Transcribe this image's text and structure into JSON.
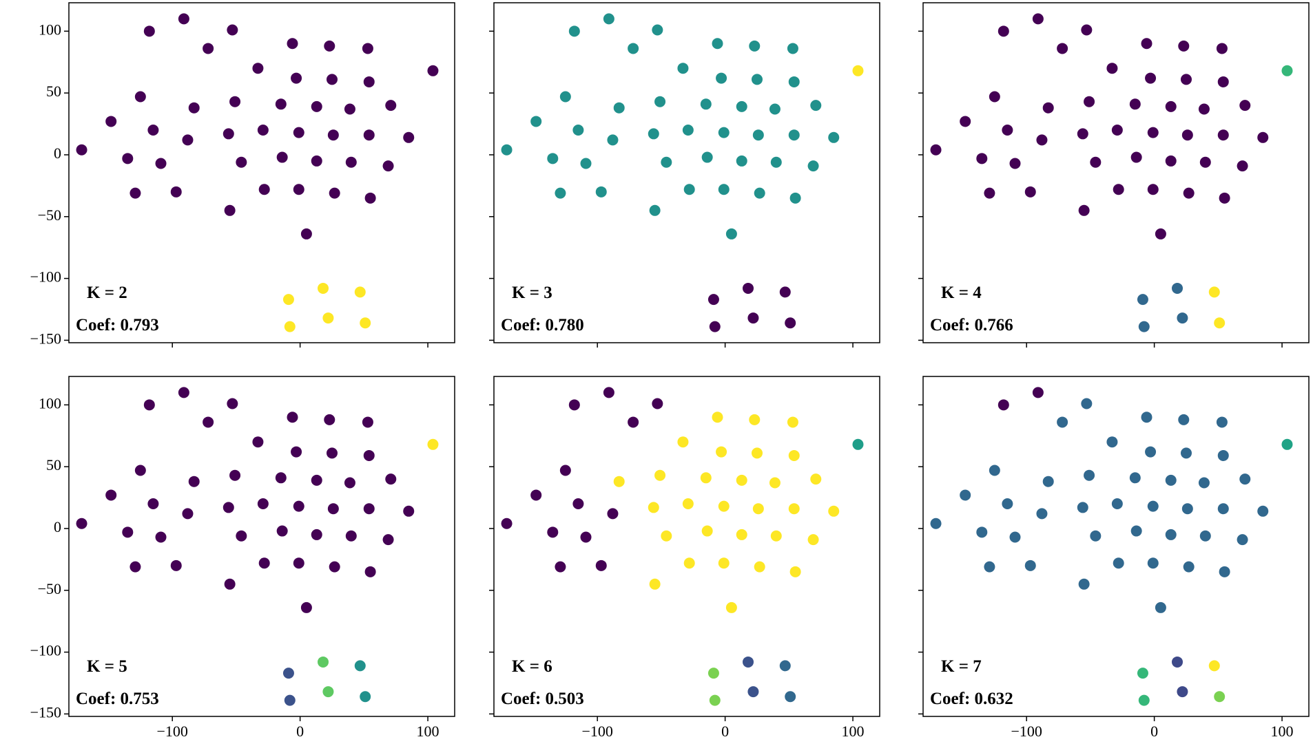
{
  "chart_data": [
    {
      "type": "scatter",
      "annotations": [
        "K = 2",
        "Coef: 0.793"
      ],
      "x": [
        -171,
        -148,
        -135,
        -129,
        -125,
        -118,
        -115,
        -109,
        -97,
        -91,
        -88,
        -83,
        -72,
        -56,
        -55,
        -53,
        -51,
        -46,
        -33,
        -29,
        -28,
        -15,
        -14,
        -6,
        -3,
        -1,
        -1,
        5,
        13,
        13,
        23,
        25,
        26,
        27,
        39,
        40,
        53,
        54,
        54,
        55,
        71,
        69,
        85,
        104,
        -9,
        -8,
        18,
        22,
        47,
        51
      ],
      "y": [
        4,
        27,
        -3,
        -31,
        47,
        100,
        20,
        -7,
        -30,
        110,
        12,
        38,
        86,
        17,
        -45,
        101,
        43,
        -6,
        70,
        20,
        -28,
        41,
        -2,
        90,
        62,
        18,
        -28,
        -64,
        39,
        -5,
        88,
        61,
        16,
        -31,
        37,
        -6,
        86,
        59,
        16,
        -35,
        40,
        -9,
        14,
        68,
        -117,
        -139,
        -108,
        -132,
        -111,
        -136
      ],
      "colors": [
        "#440154",
        "#440154",
        "#440154",
        "#440154",
        "#440154",
        "#440154",
        "#440154",
        "#440154",
        "#440154",
        "#440154",
        "#440154",
        "#440154",
        "#440154",
        "#440154",
        "#440154",
        "#440154",
        "#440154",
        "#440154",
        "#440154",
        "#440154",
        "#440154",
        "#440154",
        "#440154",
        "#440154",
        "#440154",
        "#440154",
        "#440154",
        "#440154",
        "#440154",
        "#440154",
        "#440154",
        "#440154",
        "#440154",
        "#440154",
        "#440154",
        "#440154",
        "#440154",
        "#440154",
        "#440154",
        "#440154",
        "#440154",
        "#440154",
        "#440154",
        "#440154",
        "#fde725",
        "#fde725",
        "#fde725",
        "#fde725",
        "#fde725",
        "#fde725"
      ],
      "xlim": [
        -181,
        121
      ],
      "ylim": [
        -152,
        123
      ],
      "xticks": [
        {
          "value": -100,
          "label": "−100"
        },
        0,
        100
      ],
      "yticks": [
        {
          "value": -150,
          "label": "−150"
        },
        {
          "value": -100,
          "label": "−100"
        },
        {
          "value": -50,
          "label": "−50"
        },
        0,
        50,
        100
      ]
    },
    {
      "type": "scatter",
      "annotations": [
        "K = 3",
        "Coef: 0.780"
      ],
      "x": [
        -171,
        -148,
        -135,
        -129,
        -125,
        -118,
        -115,
        -109,
        -97,
        -91,
        -88,
        -83,
        -72,
        -56,
        -55,
        -53,
        -51,
        -46,
        -33,
        -29,
        -28,
        -15,
        -14,
        -6,
        -3,
        -1,
        -1,
        5,
        13,
        13,
        23,
        25,
        26,
        27,
        39,
        40,
        53,
        54,
        54,
        55,
        71,
        69,
        85,
        104,
        -9,
        -8,
        18,
        22,
        47,
        51
      ],
      "y": [
        4,
        27,
        -3,
        -31,
        47,
        100,
        20,
        -7,
        -30,
        110,
        12,
        38,
        86,
        17,
        -45,
        101,
        43,
        -6,
        70,
        20,
        -28,
        41,
        -2,
        90,
        62,
        18,
        -28,
        -64,
        39,
        -5,
        88,
        61,
        16,
        -31,
        37,
        -6,
        86,
        59,
        16,
        -35,
        40,
        -9,
        14,
        68,
        -117,
        -139,
        -108,
        -132,
        -111,
        -136
      ],
      "colors": [
        "#21918c",
        "#21918c",
        "#21918c",
        "#21918c",
        "#21918c",
        "#21918c",
        "#21918c",
        "#21918c",
        "#21918c",
        "#21918c",
        "#21918c",
        "#21918c",
        "#21918c",
        "#21918c",
        "#21918c",
        "#21918c",
        "#21918c",
        "#21918c",
        "#21918c",
        "#21918c",
        "#21918c",
        "#21918c",
        "#21918c",
        "#21918c",
        "#21918c",
        "#21918c",
        "#21918c",
        "#21918c",
        "#21918c",
        "#21918c",
        "#21918c",
        "#21918c",
        "#21918c",
        "#21918c",
        "#21918c",
        "#21918c",
        "#21918c",
        "#21918c",
        "#21918c",
        "#21918c",
        "#21918c",
        "#21918c",
        "#21918c",
        "#fde725",
        "#440154",
        "#440154",
        "#440154",
        "#440154",
        "#440154",
        "#440154"
      ],
      "xlim": [
        -181,
        121
      ],
      "ylim": [
        -152,
        123
      ],
      "xticks": [
        {
          "value": -100,
          "label": "−100"
        },
        0,
        100
      ],
      "yticks": [
        {
          "value": -150,
          "label": "−150"
        },
        {
          "value": -100,
          "label": "−100"
        },
        {
          "value": -50,
          "label": "−50"
        },
        0,
        50,
        100
      ]
    },
    {
      "type": "scatter",
      "annotations": [
        "K = 4",
        "Coef: 0.766"
      ],
      "x": [
        -171,
        -148,
        -135,
        -129,
        -125,
        -118,
        -115,
        -109,
        -97,
        -91,
        -88,
        -83,
        -72,
        -56,
        -55,
        -53,
        -51,
        -46,
        -33,
        -29,
        -28,
        -15,
        -14,
        -6,
        -3,
        -1,
        -1,
        5,
        13,
        13,
        23,
        25,
        26,
        27,
        39,
        40,
        53,
        54,
        54,
        55,
        71,
        69,
        85,
        104,
        -9,
        -8,
        18,
        22,
        47,
        51
      ],
      "y": [
        4,
        27,
        -3,
        -31,
        47,
        100,
        20,
        -7,
        -30,
        110,
        12,
        38,
        86,
        17,
        -45,
        101,
        43,
        -6,
        70,
        20,
        -28,
        41,
        -2,
        90,
        62,
        18,
        -28,
        -64,
        39,
        -5,
        88,
        61,
        16,
        -31,
        37,
        -6,
        86,
        59,
        16,
        -35,
        40,
        -9,
        14,
        68,
        -117,
        -139,
        -108,
        -132,
        -111,
        -136
      ],
      "colors": [
        "#440154",
        "#440154",
        "#440154",
        "#440154",
        "#440154",
        "#440154",
        "#440154",
        "#440154",
        "#440154",
        "#440154",
        "#440154",
        "#440154",
        "#440154",
        "#440154",
        "#440154",
        "#440154",
        "#440154",
        "#440154",
        "#440154",
        "#440154",
        "#440154",
        "#440154",
        "#440154",
        "#440154",
        "#440154",
        "#440154",
        "#440154",
        "#440154",
        "#440154",
        "#440154",
        "#440154",
        "#440154",
        "#440154",
        "#440154",
        "#440154",
        "#440154",
        "#440154",
        "#440154",
        "#440154",
        "#440154",
        "#440154",
        "#440154",
        "#440154",
        "#35b779",
        "#31688e",
        "#31688e",
        "#31688e",
        "#31688e",
        "#fde725",
        "#fde725"
      ],
      "xlim": [
        -181,
        121
      ],
      "ylim": [
        -152,
        123
      ],
      "xticks": [
        {
          "value": -100,
          "label": "−100"
        },
        0,
        100
      ],
      "yticks": [
        {
          "value": -150,
          "label": "−150"
        },
        {
          "value": -100,
          "label": "−100"
        },
        {
          "value": -50,
          "label": "−50"
        },
        0,
        50,
        100
      ]
    },
    {
      "type": "scatter",
      "annotations": [
        "K = 5",
        "Coef: 0.753"
      ],
      "x": [
        -171,
        -148,
        -135,
        -129,
        -125,
        -118,
        -115,
        -109,
        -97,
        -91,
        -88,
        -83,
        -72,
        -56,
        -55,
        -53,
        -51,
        -46,
        -33,
        -29,
        -28,
        -15,
        -14,
        -6,
        -3,
        -1,
        -1,
        5,
        13,
        13,
        23,
        25,
        26,
        27,
        39,
        40,
        53,
        54,
        54,
        55,
        71,
        69,
        85,
        104,
        -9,
        -8,
        18,
        22,
        47,
        51
      ],
      "y": [
        4,
        27,
        -3,
        -31,
        47,
        100,
        20,
        -7,
        -30,
        110,
        12,
        38,
        86,
        17,
        -45,
        101,
        43,
        -6,
        70,
        20,
        -28,
        41,
        -2,
        90,
        62,
        18,
        -28,
        -64,
        39,
        -5,
        88,
        61,
        16,
        -31,
        37,
        -6,
        86,
        59,
        16,
        -35,
        40,
        -9,
        14,
        68,
        -117,
        -139,
        -108,
        -132,
        -111,
        -136
      ],
      "colors": [
        "#440154",
        "#440154",
        "#440154",
        "#440154",
        "#440154",
        "#440154",
        "#440154",
        "#440154",
        "#440154",
        "#440154",
        "#440154",
        "#440154",
        "#440154",
        "#440154",
        "#440154",
        "#440154",
        "#440154",
        "#440154",
        "#440154",
        "#440154",
        "#440154",
        "#440154",
        "#440154",
        "#440154",
        "#440154",
        "#440154",
        "#440154",
        "#440154",
        "#440154",
        "#440154",
        "#440154",
        "#440154",
        "#440154",
        "#440154",
        "#440154",
        "#440154",
        "#440154",
        "#440154",
        "#440154",
        "#440154",
        "#440154",
        "#440154",
        "#440154",
        "#fde725",
        "#3b528b",
        "#3b528b",
        "#5ec962",
        "#5ec962",
        "#21918c",
        "#21918c"
      ],
      "xlim": [
        -181,
        121
      ],
      "ylim": [
        -152,
        123
      ],
      "xticks": [
        {
          "value": -100,
          "label": "−100"
        },
        0,
        100
      ],
      "yticks": [
        {
          "value": -150,
          "label": "−150"
        },
        {
          "value": -100,
          "label": "−100"
        },
        {
          "value": -50,
          "label": "−50"
        },
        0,
        50,
        100
      ]
    },
    {
      "type": "scatter",
      "annotations": [
        "K = 6",
        "Coef: 0.503"
      ],
      "x": [
        -171,
        -148,
        -135,
        -129,
        -125,
        -118,
        -115,
        -109,
        -97,
        -91,
        -88,
        -83,
        -72,
        -56,
        -55,
        -53,
        -51,
        -46,
        -33,
        -29,
        -28,
        -15,
        -14,
        -6,
        -3,
        -1,
        -1,
        5,
        13,
        13,
        23,
        25,
        26,
        27,
        39,
        40,
        53,
        54,
        54,
        55,
        71,
        69,
        85,
        104,
        -9,
        -8,
        18,
        22,
        47,
        51
      ],
      "y": [
        4,
        27,
        -3,
        -31,
        47,
        100,
        20,
        -7,
        -30,
        110,
        12,
        38,
        86,
        17,
        -45,
        101,
        43,
        -6,
        70,
        20,
        -28,
        41,
        -2,
        90,
        62,
        18,
        -28,
        -64,
        39,
        -5,
        88,
        61,
        16,
        -31,
        37,
        -6,
        86,
        59,
        16,
        -35,
        40,
        -9,
        14,
        68,
        -117,
        -139,
        -108,
        -132,
        -111,
        -136
      ],
      "colors": [
        "#440154",
        "#440154",
        "#440154",
        "#440154",
        "#440154",
        "#440154",
        "#440154",
        "#440154",
        "#440154",
        "#440154",
        "#440154",
        "#fde725",
        "#440154",
        "#fde725",
        "#fde725",
        "#440154",
        "#fde725",
        "#fde725",
        "#fde725",
        "#fde725",
        "#fde725",
        "#fde725",
        "#fde725",
        "#fde725",
        "#fde725",
        "#fde725",
        "#fde725",
        "#fde725",
        "#fde725",
        "#fde725",
        "#fde725",
        "#fde725",
        "#fde725",
        "#fde725",
        "#fde725",
        "#fde725",
        "#fde725",
        "#fde725",
        "#fde725",
        "#fde725",
        "#fde725",
        "#fde725",
        "#fde725",
        "#1f9e89",
        "#7ad151",
        "#7ad151",
        "#3b528b",
        "#3b528b",
        "#31688e",
        "#31688e"
      ],
      "xlim": [
        -181,
        121
      ],
      "ylim": [
        -152,
        123
      ],
      "xticks": [
        {
          "value": -100,
          "label": "−100"
        },
        0,
        100
      ],
      "yticks": [
        {
          "value": -150,
          "label": "−150"
        },
        {
          "value": -100,
          "label": "−100"
        },
        {
          "value": -50,
          "label": "−50"
        },
        0,
        50,
        100
      ]
    },
    {
      "type": "scatter",
      "annotations": [
        "K = 7",
        "Coef: 0.632"
      ],
      "x": [
        -171,
        -148,
        -135,
        -129,
        -125,
        -118,
        -115,
        -109,
        -97,
        -91,
        -88,
        -83,
        -72,
        -56,
        -55,
        -53,
        -51,
        -46,
        -33,
        -29,
        -28,
        -15,
        -14,
        -6,
        -3,
        -1,
        -1,
        5,
        13,
        13,
        23,
        25,
        26,
        27,
        39,
        40,
        53,
        54,
        54,
        55,
        71,
        69,
        85,
        104,
        -9,
        -8,
        18,
        22,
        47,
        51
      ],
      "y": [
        4,
        27,
        -3,
        -31,
        47,
        100,
        20,
        -7,
        -30,
        110,
        12,
        38,
        86,
        17,
        -45,
        101,
        43,
        -6,
        70,
        20,
        -28,
        41,
        -2,
        90,
        62,
        18,
        -28,
        -64,
        39,
        -5,
        88,
        61,
        16,
        -31,
        37,
        -6,
        86,
        59,
        16,
        -35,
        40,
        -9,
        14,
        68,
        -117,
        -139,
        -108,
        -132,
        -111,
        -136
      ],
      "colors": [
        "#31688e",
        "#31688e",
        "#31688e",
        "#31688e",
        "#31688e",
        "#440154",
        "#31688e",
        "#31688e",
        "#31688e",
        "#440154",
        "#31688e",
        "#31688e",
        "#31688e",
        "#31688e",
        "#31688e",
        "#31688e",
        "#31688e",
        "#31688e",
        "#31688e",
        "#31688e",
        "#31688e",
        "#31688e",
        "#31688e",
        "#31688e",
        "#31688e",
        "#31688e",
        "#31688e",
        "#31688e",
        "#31688e",
        "#31688e",
        "#31688e",
        "#31688e",
        "#31688e",
        "#31688e",
        "#31688e",
        "#31688e",
        "#31688e",
        "#31688e",
        "#31688e",
        "#31688e",
        "#31688e",
        "#31688e",
        "#31688e",
        "#20a386",
        "#35b779",
        "#35b779",
        "#3e4989",
        "#3e4989",
        "#fde725",
        "#7ad151"
      ],
      "xlim": [
        -181,
        121
      ],
      "ylim": [
        -152,
        123
      ],
      "xticks": [
        {
          "value": -100,
          "label": "−100"
        },
        0,
        100
      ],
      "yticks": [
        {
          "value": -150,
          "label": "−150"
        },
        {
          "value": -100,
          "label": "−100"
        },
        {
          "value": -50,
          "label": "−50"
        },
        0,
        50,
        100
      ]
    }
  ]
}
